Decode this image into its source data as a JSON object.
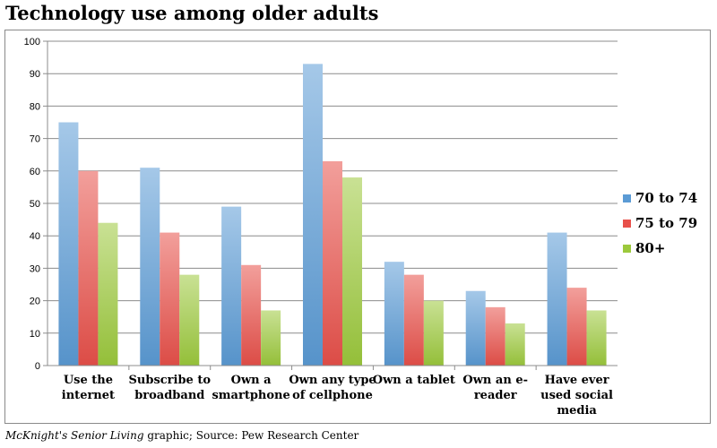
{
  "title": "Technology use among older adults",
  "footer": {
    "publication": "McKnight's Senior Living",
    "rest": " graphic; Source: Pew Research Center"
  },
  "colors": {
    "70 to 74": "#5b9bd5",
    "75 to 79": "#e8504a",
    "80+": "#9cc93c"
  },
  "chart_data": {
    "type": "bar",
    "title": "",
    "xlabel": "",
    "ylabel": "",
    "ylim": [
      0,
      100
    ],
    "yticks": [
      0,
      10,
      20,
      30,
      40,
      50,
      60,
      70,
      80,
      90,
      100
    ],
    "grid": true,
    "legend": "right",
    "categories": [
      [
        "Use the",
        "internet"
      ],
      [
        "Subscribe to",
        "broadband"
      ],
      [
        "Own a",
        "smartphone"
      ],
      [
        "Own any type",
        "of cellphone"
      ],
      [
        "Own a tablet"
      ],
      [
        "Own an e-",
        "reader"
      ],
      [
        "Have ever",
        "used social",
        "media"
      ]
    ],
    "series": [
      {
        "name": "70 to 74",
        "values": [
          75,
          61,
          49,
          93,
          32,
          23,
          41
        ]
      },
      {
        "name": "75 to 79",
        "values": [
          60,
          41,
          31,
          63,
          28,
          18,
          24
        ]
      },
      {
        "name": "80+",
        "values": [
          44,
          28,
          17,
          58,
          20,
          13,
          17
        ]
      }
    ]
  }
}
